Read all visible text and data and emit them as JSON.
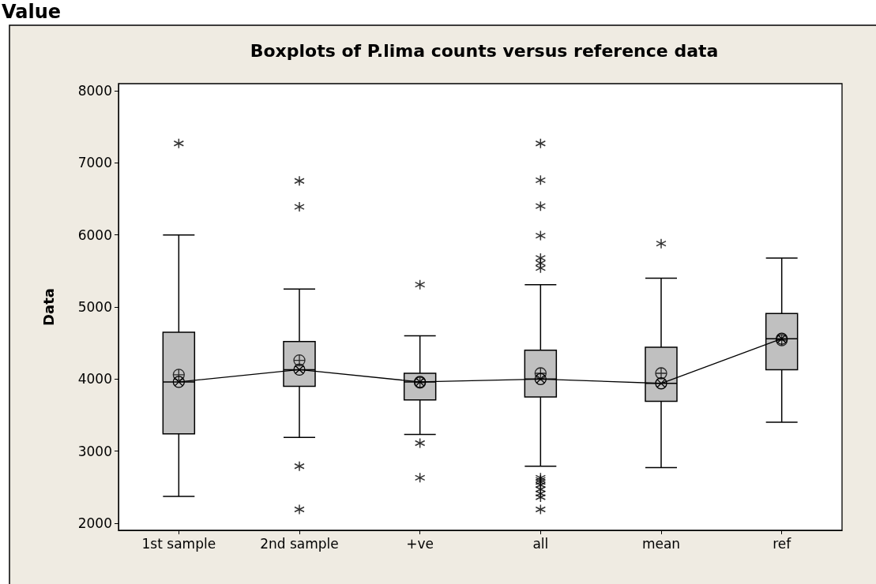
{
  "chart_data": {
    "type": "box",
    "title": "Boxplots of P.lima counts versus reference data",
    "ylabel": "Data",
    "annotations": [
      "Value"
    ],
    "categories": [
      "1st sample",
      "2nd sample",
      "+ve",
      "all",
      "mean",
      "ref"
    ],
    "boxes": [
      {
        "low": 2370,
        "q1": 3240,
        "median": 3960,
        "q3": 4650,
        "high": 6000,
        "mean": 4060,
        "outliers": [
          7270
        ]
      },
      {
        "low": 3190,
        "q1": 3900,
        "median": 4130,
        "q3": 4520,
        "high": 5250,
        "mean": 4260,
        "outliers": [
          6750,
          6390,
          2790,
          2190
        ]
      },
      {
        "low": 3230,
        "q1": 3710,
        "median": 3960,
        "q3": 4080,
        "high": 4600,
        "mean": 3950,
        "outliers": [
          5310,
          3110,
          2630
        ]
      },
      {
        "low": 2790,
        "q1": 3750,
        "median": 4000,
        "q3": 4400,
        "high": 5310,
        "mean": 4080,
        "outliers": [
          7270,
          6760,
          6400,
          5990,
          5680,
          5610,
          5540,
          2630,
          2600,
          2570,
          2530,
          2470,
          2410,
          2360,
          2190
        ]
      },
      {
        "low": 2770,
        "q1": 3690,
        "median": 3940,
        "q3": 4440,
        "high": 5400,
        "mean": 4080,
        "outliers": [
          5880
        ]
      },
      {
        "low": 3400,
        "q1": 4130,
        "median": 4560,
        "q3": 4910,
        "high": 5680,
        "mean": 4540
      }
    ],
    "series": [
      {
        "type": "line",
        "color": "#000000",
        "marker": "cross",
        "values": [
          3960,
          4130,
          3960,
          4000,
          3940,
          4560
        ]
      }
    ],
    "color": "#c0c0c0",
    "ylim": [
      1900,
      8100
    ],
    "yticks": [
      2000,
      3000,
      4000,
      5000,
      6000,
      7000,
      8000
    ],
    "grid": false
  }
}
